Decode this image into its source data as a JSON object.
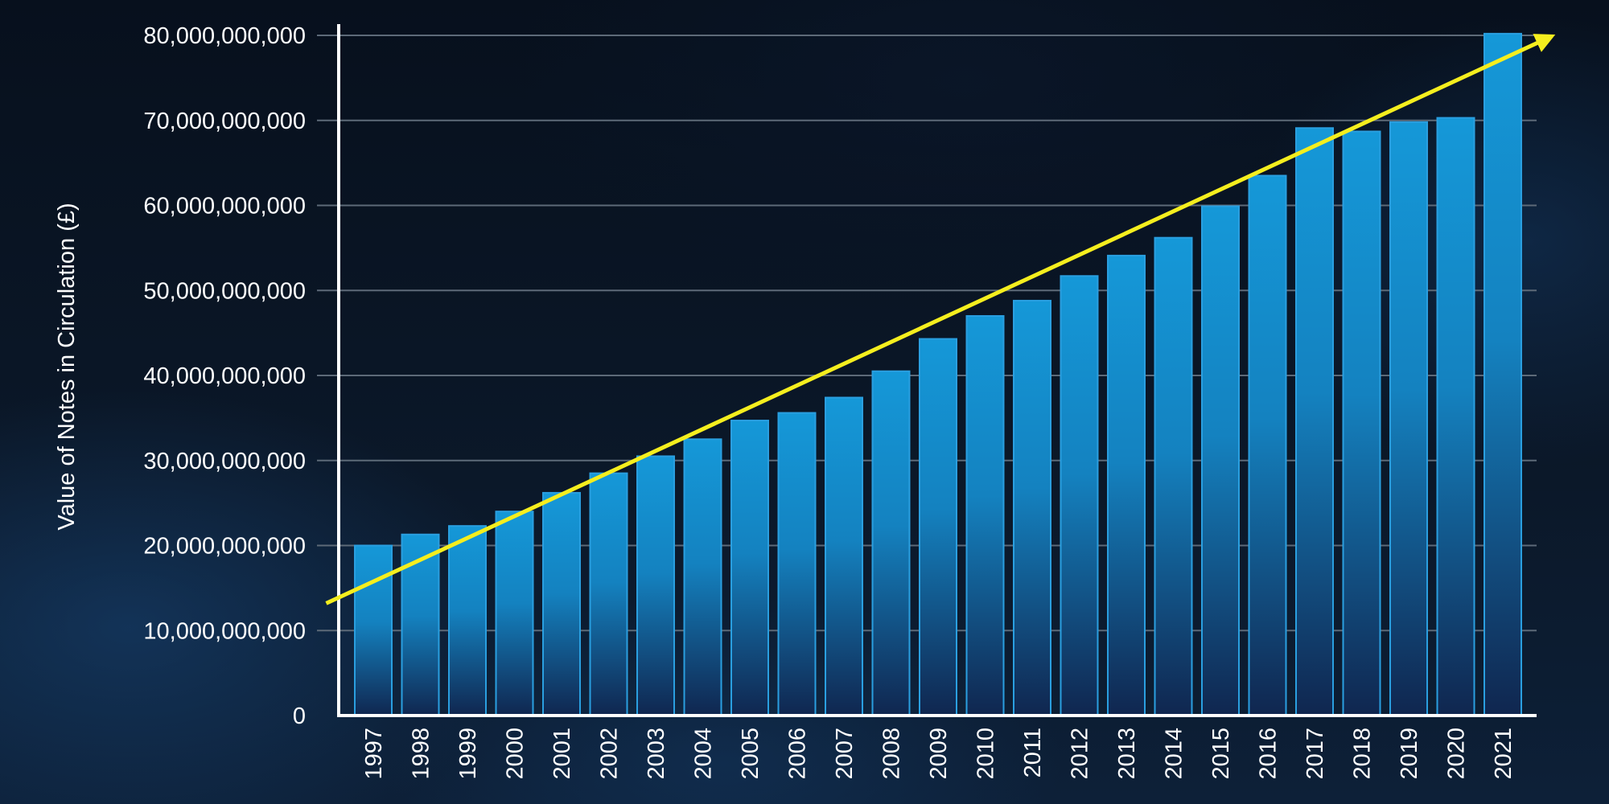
{
  "chart_data": {
    "type": "bar",
    "title": "",
    "xlabel": "",
    "ylabel": "Value of Notes in Circulation (£)",
    "ylim": [
      0,
      80000000000
    ],
    "yticks": [
      0,
      10000000000,
      20000000000,
      30000000000,
      40000000000,
      50000000000,
      60000000000,
      70000000000,
      80000000000
    ],
    "ytick_labels": [
      "0",
      "10,000,000,000",
      "20,000,000,000",
      "30,000,000,000",
      "40,000,000,000",
      "50,000,000,000",
      "60,000,000,000",
      "70,000,000,000",
      "80,000,000,000"
    ],
    "categories": [
      "1997",
      "1998",
      "1999",
      "2000",
      "2001",
      "2002",
      "2003",
      "2004",
      "2005",
      "2006",
      "2007",
      "2008",
      "2009",
      "2010",
      "2011",
      "2012",
      "2013",
      "2014",
      "2015",
      "2016",
      "2017",
      "2018",
      "2019",
      "2020",
      "2021"
    ],
    "values": [
      20000000000,
      21300000000,
      22300000000,
      24000000000,
      26200000000,
      28500000000,
      30500000000,
      32500000000,
      34700000000,
      35600000000,
      37400000000,
      40500000000,
      44300000000,
      47000000000,
      48800000000,
      51700000000,
      54100000000,
      56200000000,
      59900000000,
      63500000000,
      69100000000,
      68700000000,
      69800000000,
      70300000000,
      80200000000
    ],
    "grid": true,
    "trend_arrow": {
      "color": "#f5ee1e",
      "start": {
        "x": "1996",
        "y": 13200000000
      },
      "end": {
        "x": "2022",
        "y": 79800000000
      }
    },
    "colors": {
      "bar_top": "#1598d8",
      "bar_bottom": "#10264f",
      "bar_edge": "#2a9fe0",
      "axis": "#ffffff",
      "grid": "#5d6a78",
      "text": "#ffffff",
      "trend": "#f5ee1e"
    }
  }
}
